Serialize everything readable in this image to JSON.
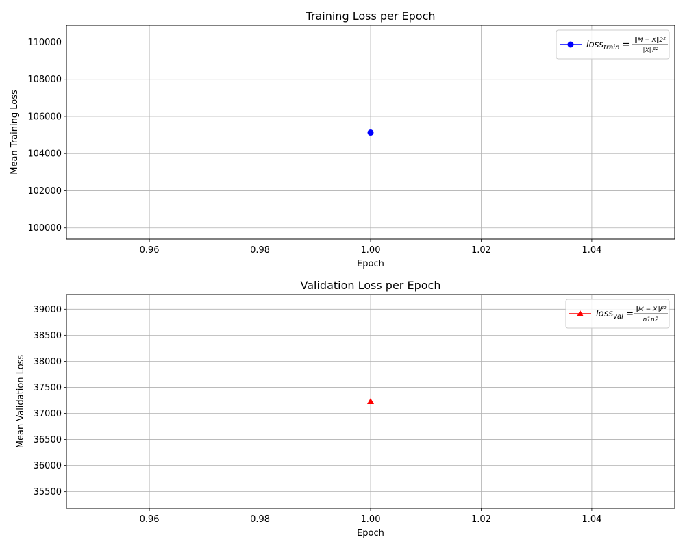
{
  "chart_data": [
    {
      "type": "line",
      "title": "Training Loss per Epoch",
      "xlabel": "Epoch",
      "ylabel": "Mean Training Loss",
      "xlim": [
        0.945,
        1.055
      ],
      "ylim": [
        99400,
        110900
      ],
      "xticks": [
        0.96,
        0.98,
        1.0,
        1.02,
        1.04
      ],
      "xtick_labels": [
        "0.96",
        "0.98",
        "1.00",
        "1.02",
        "1.04"
      ],
      "yticks": [
        100000,
        102000,
        104000,
        106000,
        108000,
        110000
      ],
      "ytick_labels": [
        "100000",
        "102000",
        "104000",
        "106000",
        "108000",
        "110000"
      ],
      "grid": true,
      "legend_position": "top-right",
      "series": [
        {
          "name": "loss_train = ||M − X||2² / ||X||F²",
          "legend_base": "loss",
          "legend_sub": "train",
          "legend_num": "‖M − X‖2²",
          "legend_den": "‖X‖F²",
          "color": "#0000ff",
          "marker": "circle",
          "x": [
            1.0
          ],
          "y": [
            105130
          ]
        }
      ]
    },
    {
      "type": "line",
      "title": "Validation Loss per Epoch",
      "xlabel": "Epoch",
      "ylabel": "Mean Validation Loss",
      "xlim": [
        0.945,
        1.055
      ],
      "ylim": [
        35180,
        39280
      ],
      "xticks": [
        0.96,
        0.98,
        1.0,
        1.02,
        1.04
      ],
      "xtick_labels": [
        "0.96",
        "0.98",
        "1.00",
        "1.02",
        "1.04"
      ],
      "yticks": [
        35500,
        36000,
        36500,
        37000,
        37500,
        38000,
        38500,
        39000
      ],
      "ytick_labels": [
        "35500",
        "36000",
        "36500",
        "37000",
        "37500",
        "38000",
        "38500",
        "39000"
      ],
      "grid": true,
      "legend_position": "top-right",
      "series": [
        {
          "name": "loss_val = ||M − X||F² / n1n2",
          "legend_base": "loss",
          "legend_sub": "val",
          "legend_num": "‖M − X‖F²",
          "legend_den": "n1n2",
          "color": "#ff0000",
          "marker": "triangle",
          "x": [
            1.0
          ],
          "y": [
            37230
          ]
        }
      ]
    }
  ]
}
